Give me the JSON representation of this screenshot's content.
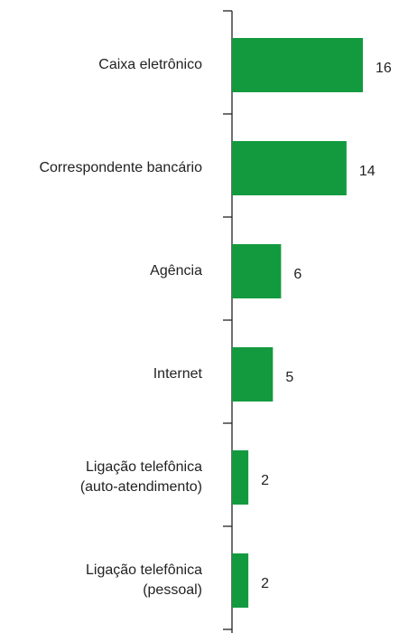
{
  "chart_data": {
    "type": "barh",
    "categories": [
      "Caixa eletrônico",
      "Correspondente bancário",
      "Agência",
      "Internet",
      "Ligação telefônica\n(auto-atendimento)",
      "Ligação telefônica\n(pessoal)"
    ],
    "values": [
      16,
      14,
      6,
      5,
      2,
      2
    ],
    "color": "#139a3f"
  }
}
